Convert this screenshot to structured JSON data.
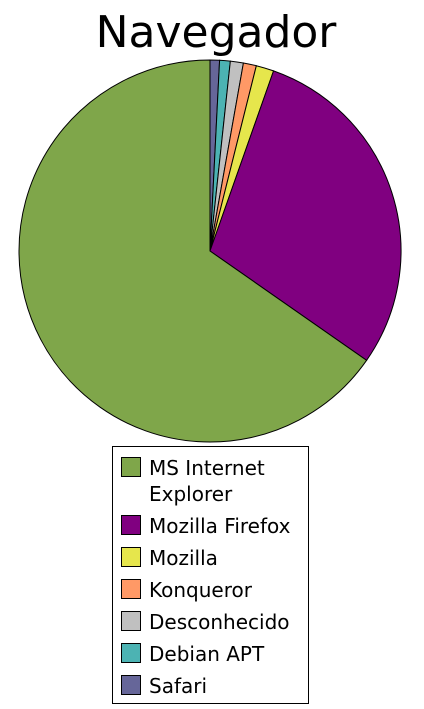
{
  "chart_data": {
    "type": "pie",
    "title": "Navegador",
    "slices": [
      {
        "label": "MS Internet Explorer",
        "value": 65.3,
        "color": "#7fa64a"
      },
      {
        "label": "Mozilla Firefox",
        "value": 29.3,
        "color": "#800080"
      },
      {
        "label": "Mozilla",
        "value": 1.5,
        "color": "#e6e64c"
      },
      {
        "label": "Konqueror",
        "value": 1.1,
        "color": "#ff9966"
      },
      {
        "label": "Desconhecido",
        "value": 1.1,
        "color": "#c0c0c0"
      },
      {
        "label": "Debian APT",
        "value": 0.9,
        "color": "#4cb3b3"
      },
      {
        "label": "Safari",
        "value": 0.8,
        "color": "#666699"
      }
    ],
    "legend_position": "bottom"
  }
}
